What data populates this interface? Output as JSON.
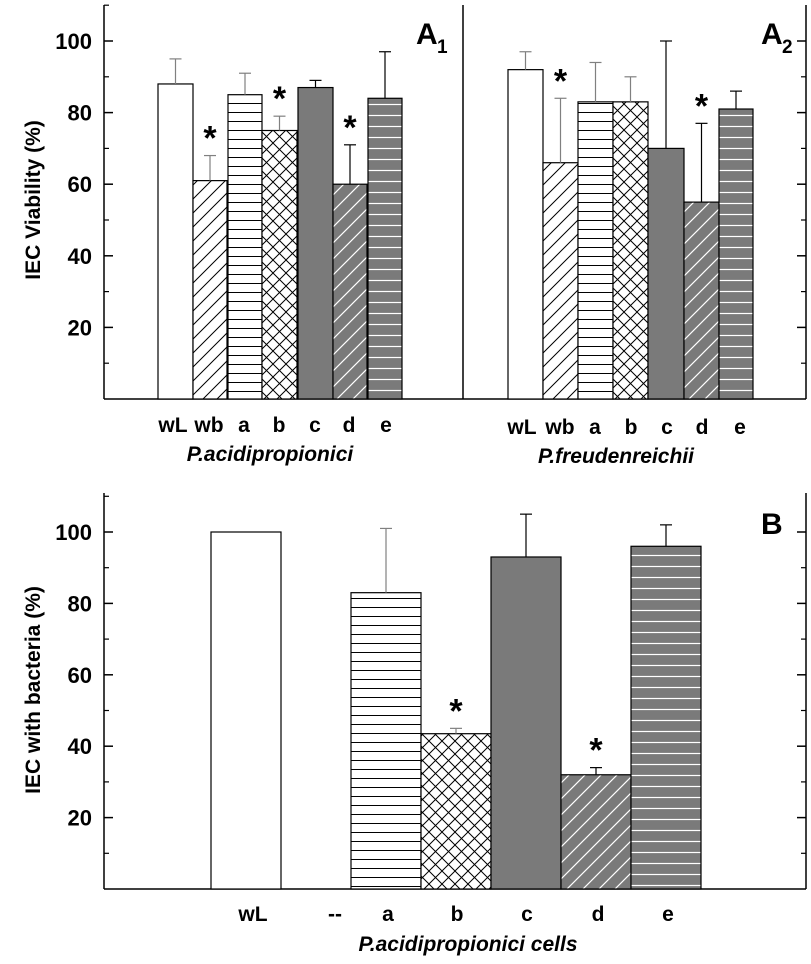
{
  "colors": {
    "dark_fill": "#7a7a7a",
    "light_fill": "#ffffff",
    "line": "#000000",
    "light_pattern_line": "#000000",
    "dark_pattern_line": "#ffffff",
    "errorbar_light": "#808080",
    "errorbar_dark": "#000000"
  },
  "legend_patterns": {
    "wL": "open",
    "wb": "diagonal",
    "a": "horizontal",
    "b": "crosshatch",
    "c": "solid-dark",
    "d": "diagonal-dark",
    "e": "horizontal-dark"
  },
  "chart_data": [
    {
      "type": "bar",
      "panel_label": "A",
      "panel_subscript": "1",
      "title": "",
      "ylabel": "IEC Viability (%)",
      "xlabel": "P.acidipropionici",
      "ylim": [
        0,
        110
      ],
      "yticks": [
        20,
        40,
        60,
        80,
        100
      ],
      "grid": false,
      "categories": [
        "wL",
        "wb",
        "a",
        "b",
        "c",
        "d",
        "e"
      ],
      "values": [
        88,
        61,
        85,
        75,
        87,
        60,
        84
      ],
      "errors": [
        7,
        7,
        6,
        4,
        2,
        11,
        13
      ],
      "significant": [
        false,
        true,
        false,
        true,
        false,
        true,
        false
      ]
    },
    {
      "type": "bar",
      "panel_label": "A",
      "panel_subscript": "2",
      "title": "",
      "ylabel": "",
      "xlabel": "P.freudenreichii",
      "ylim": [
        0,
        110
      ],
      "yticks": [
        20,
        40,
        60,
        80,
        100
      ],
      "grid": false,
      "categories": [
        "wL",
        "wb",
        "a",
        "b",
        "c",
        "d",
        "e"
      ],
      "values": [
        92,
        66,
        83,
        83,
        70,
        55,
        81
      ],
      "errors": [
        5,
        18,
        11,
        7,
        30,
        22,
        5
      ],
      "significant": [
        false,
        true,
        false,
        false,
        false,
        true,
        false
      ]
    },
    {
      "type": "bar",
      "panel_label": "B",
      "panel_subscript": "",
      "title": "",
      "ylabel": "IEC with bacteria (%)",
      "xlabel": "P.acidipropionici  cells",
      "ylim": [
        0,
        110
      ],
      "yticks": [
        20,
        40,
        60,
        80,
        100
      ],
      "grid": false,
      "categories": [
        "wL",
        "--",
        "a",
        "b",
        "c",
        "d",
        "e"
      ],
      "values": [
        100,
        null,
        83,
        43.5,
        93,
        32,
        96
      ],
      "errors": [
        0,
        null,
        18,
        1.5,
        12,
        2,
        6
      ],
      "significant": [
        false,
        false,
        false,
        true,
        false,
        true,
        false
      ]
    }
  ]
}
